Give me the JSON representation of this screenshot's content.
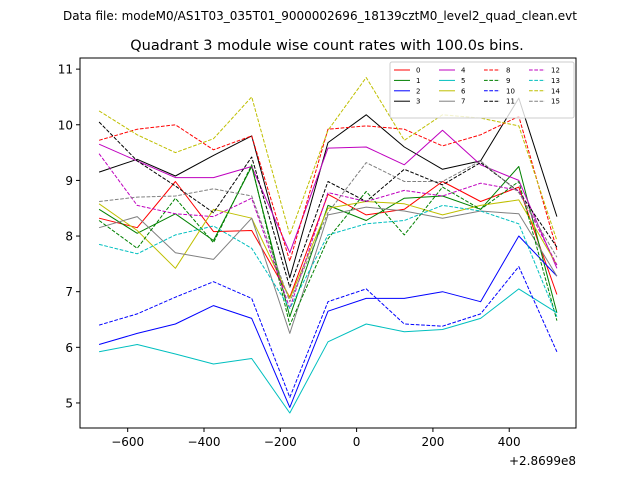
{
  "chart_data": {
    "type": "line",
    "suptitle": "Data file: modeM0/AS1T03_035T01_9000002696_18139cztM0_level2_quad_clean.evt",
    "title": "Quadrant 3 module wise count rates with 100.0s bins.",
    "xlabel": "",
    "ylabel": "",
    "x_offset_label": "+2.8699e8",
    "x": [
      -675,
      -575,
      -475,
      -375,
      -275,
      -175,
      -75,
      25,
      125,
      225,
      325,
      425,
      525
    ],
    "xlim": [
      -725,
      575
    ],
    "ylim": [
      4.55,
      11.2
    ],
    "x_ticks": [
      -600,
      -400,
      -200,
      0,
      200,
      400
    ],
    "x_tick_labels": [
      "−600",
      "−400",
      "−200",
      "0",
      "200",
      "400"
    ],
    "y_ticks": [
      5,
      6,
      7,
      8,
      9,
      10,
      11
    ],
    "y_tick_labels": [
      "5",
      "6",
      "7",
      "8",
      "9",
      "10",
      "11"
    ],
    "legend": {
      "position": "top-right",
      "columns": 4
    },
    "series": [
      {
        "name": "0",
        "color": "#ff0000",
        "dash": "solid",
        "values": [
          8.32,
          8.15,
          8.98,
          8.08,
          8.1,
          6.9,
          8.75,
          8.38,
          8.48,
          8.98,
          8.62,
          8.88,
          6.95
        ]
      },
      {
        "name": "1",
        "color": "#008000",
        "dash": "solid",
        "values": [
          8.48,
          8.05,
          8.4,
          7.92,
          9.25,
          6.55,
          8.55,
          8.28,
          8.68,
          8.72,
          8.48,
          9.25,
          6.62
        ]
      },
      {
        "name": "2",
        "color": "#0000ff",
        "dash": "solid",
        "values": [
          6.05,
          6.25,
          6.42,
          6.75,
          6.52,
          4.92,
          6.65,
          6.88,
          6.88,
          7.0,
          6.82,
          8.0,
          7.28
        ]
      },
      {
        "name": "3",
        "color": "#000000",
        "dash": "solid",
        "values": [
          9.15,
          9.38,
          9.08,
          9.45,
          9.8,
          7.25,
          9.68,
          10.18,
          9.6,
          9.2,
          9.35,
          10.48,
          8.35
        ]
      },
      {
        "name": "4",
        "color": "#bf00bf",
        "dash": "solid",
        "values": [
          9.65,
          9.35,
          9.05,
          9.05,
          9.25,
          7.7,
          9.58,
          9.6,
          9.28,
          9.9,
          9.28,
          9.0,
          7.42
        ]
      },
      {
        "name": "5",
        "color": "#00bfbf",
        "dash": "solid",
        "values": [
          5.92,
          6.05,
          5.88,
          5.7,
          5.8,
          4.82,
          6.1,
          6.42,
          6.28,
          6.32,
          6.52,
          7.05,
          6.62
        ]
      },
      {
        "name": "6",
        "color": "#bfbf00",
        "dash": "solid",
        "values": [
          8.58,
          8.1,
          7.42,
          8.48,
          8.32,
          6.88,
          8.5,
          8.62,
          8.58,
          8.38,
          8.55,
          8.65,
          7.48
        ]
      },
      {
        "name": "7",
        "color": "#808080",
        "dash": "solid",
        "values": [
          8.15,
          8.35,
          7.7,
          7.58,
          8.32,
          6.25,
          8.38,
          8.52,
          8.45,
          8.32,
          8.45,
          8.4,
          7.28
        ]
      },
      {
        "name": "8",
        "color": "#ff0000",
        "dash": "dashed",
        "values": [
          9.72,
          9.92,
          10.0,
          9.55,
          9.8,
          7.55,
          9.92,
          9.98,
          9.92,
          9.62,
          9.82,
          10.15,
          7.75
        ]
      },
      {
        "name": "9",
        "color": "#008000",
        "dash": "dashed",
        "values": [
          8.28,
          7.78,
          8.68,
          7.88,
          9.28,
          6.4,
          7.95,
          8.8,
          8.02,
          8.88,
          8.48,
          8.98,
          6.48
        ]
      },
      {
        "name": "10",
        "color": "#0000ff",
        "dash": "dashed",
        "values": [
          6.4,
          6.6,
          6.9,
          7.18,
          6.88,
          5.1,
          6.82,
          7.05,
          6.42,
          6.38,
          6.6,
          7.45,
          5.92
        ]
      },
      {
        "name": "11",
        "color": "#000000",
        "dash": "dashed",
        "values": [
          10.05,
          9.35,
          8.9,
          8.42,
          9.42,
          7.08,
          8.98,
          8.62,
          9.2,
          8.92,
          9.32,
          8.8,
          7.8
        ]
      },
      {
        "name": "12",
        "color": "#bf00bf",
        "dash": "dashed",
        "values": [
          9.48,
          8.55,
          8.4,
          8.35,
          8.68,
          6.7,
          8.78,
          8.62,
          8.82,
          8.72,
          8.95,
          8.82,
          7.48
        ]
      },
      {
        "name": "13",
        "color": "#00bfbf",
        "dash": "dashed",
        "values": [
          7.85,
          7.68,
          8.02,
          8.18,
          7.78,
          6.7,
          8.02,
          8.22,
          8.28,
          8.55,
          8.45,
          8.22,
          6.55
        ]
      },
      {
        "name": "14",
        "color": "#bfbf00",
        "dash": "dashed",
        "values": [
          10.25,
          9.82,
          9.5,
          9.75,
          10.5,
          8.02,
          9.9,
          10.85,
          9.72,
          10.18,
          10.12,
          9.98,
          7.92
        ]
      },
      {
        "name": "15",
        "color": "#808080",
        "dash": "dashed",
        "values": [
          8.62,
          8.7,
          8.72,
          8.85,
          8.72,
          6.82,
          8.42,
          9.32,
          8.98,
          8.98,
          9.35,
          8.78,
          7.62
        ]
      }
    ]
  }
}
